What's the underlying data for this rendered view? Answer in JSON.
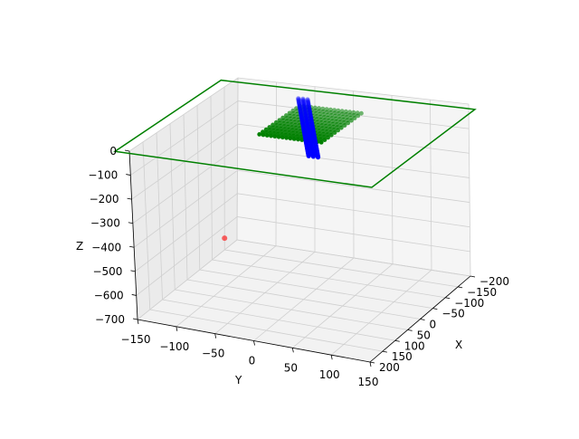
{
  "chart_data": {
    "type": "scatter",
    "projection": "3d",
    "axes": {
      "x": {
        "label": "X",
        "ticks": [
          -200,
          -150,
          -100,
          -50,
          0,
          50,
          100,
          150,
          200
        ],
        "tick_labels": [
          "−200",
          "−150",
          "−100",
          "−50",
          "0",
          "50",
          "100",
          "150",
          "200"
        ]
      },
      "y": {
        "label": "Y",
        "ticks": [
          -150,
          -100,
          -50,
          0,
          50,
          100,
          150
        ],
        "tick_labels": [
          "−150",
          "−100",
          "−50",
          "0",
          "50",
          "100",
          "150"
        ]
      },
      "z": {
        "label": "Z",
        "ticks": [
          0,
          -100,
          -200,
          -300,
          -400,
          -500,
          -600,
          -700
        ],
        "tick_labels": [
          "0",
          "−100",
          "−200",
          "−300",
          "−400",
          "−500",
          "−600",
          "−700"
        ]
      }
    },
    "grid": true,
    "series": [
      {
        "color": "#008000",
        "kind": "outline",
        "points": [
          [
            -180,
            -165,
            0
          ],
          [
            210,
            -165,
            0
          ],
          [
            210,
            165,
            0
          ],
          [
            -180,
            165,
            0
          ]
        ]
      },
      {
        "color": "#008000",
        "kind": "dot-segments",
        "segment_count": 17,
        "segment_extent": [
          -115,
          35
        ],
        "spacing_range": [
          -40,
          40
        ]
      },
      {
        "color": "#0000ff",
        "kind": "dot-band",
        "start": [
          -170,
          -55,
          -30
        ],
        "end": [
          80,
          45,
          -30
        ]
      },
      {
        "color": "#ff0000",
        "kind": "point",
        "points": [
          [
            -150,
            -150,
            -650
          ]
        ]
      }
    ]
  }
}
